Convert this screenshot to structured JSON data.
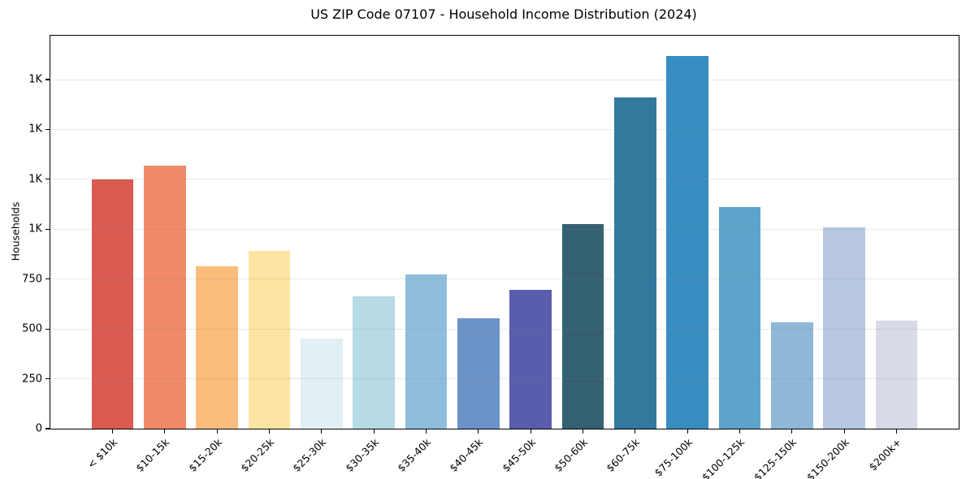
{
  "page": {
    "background_color": "#ffffff",
    "text_color": "#000000"
  },
  "chart_data": {
    "type": "bar",
    "title": "US ZIP Code 07107 - Household Income Distribution (2024)",
    "xlabel": "",
    "ylabel": "Households",
    "categories": [
      "< $10k",
      "$10-15k",
      "$15-20k",
      "$20-25k",
      "$25-30k",
      "$30-35k",
      "$35-40k",
      "$40-45k",
      "$45-50k",
      "$50-60k",
      "$60-75k",
      "$75-100k",
      "$100-125k",
      "$125-150k",
      "$150-200k",
      "$200k+"
    ],
    "values": [
      1250,
      1320,
      815,
      890,
      450,
      665,
      775,
      555,
      695,
      1025,
      1660,
      1870,
      1110,
      535,
      1010,
      540
    ],
    "bar_colors": [
      "#d95b52",
      "#f08a68",
      "#fbbc7c",
      "#fde4a2",
      "#e2f0f4",
      "#b6dbe6",
      "#90bddb",
      "#6c93c7",
      "#5a5dab",
      "#346172",
      "#32799e",
      "#388dc0",
      "#5ca4c9",
      "#8fb7d8",
      "#b7c8e0",
      "#d8dae8"
    ],
    "ylim": [
      0,
      1970
    ],
    "yticks": [
      {
        "value": 0,
        "label": "0"
      },
      {
        "value": 250,
        "label": "250"
      },
      {
        "value": 500,
        "label": "500"
      },
      {
        "value": 750,
        "label": "750"
      },
      {
        "value": 1000,
        "label": "1K"
      },
      {
        "value": 1250,
        "label": "1K"
      },
      {
        "value": 1500,
        "label": "1K"
      },
      {
        "value": 1750,
        "label": "1K"
      }
    ],
    "grid": "horizontal",
    "legend": "none",
    "x_tick_rotation_deg": 45,
    "spine_color": "#000000",
    "grid_color": "#e8e8e8"
  }
}
